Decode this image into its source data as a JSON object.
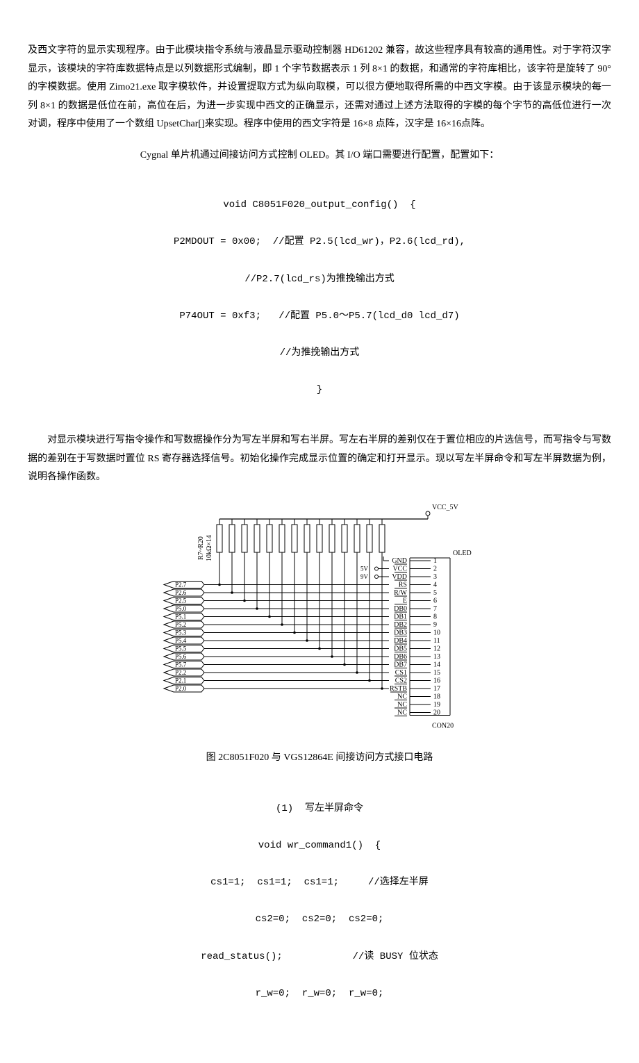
{
  "para1": "及西文字符的显示实现程序。由于此模块指令系统与液晶显示驱动控制器 HD61202 兼容，故这些程序具有较高的通用性。对于字符汉字显示，该模块的字符库数据特点是以列数据形式编制，即 1 个字节数据表示 1 列 8×1 的数据，和通常的字符库相比，该字符是旋转了 90°的字模数据。使用 Zimo21.exe 取字模软件，并设置提取方式为纵向取模，可以很方便地取得所需的中西文字模。由于该显示模块的每一列 8×1 的数据是低位在前，高位在后，为进一步实现中西文的正确显示，还需对通过上述方法取得的字模的每个字节的高低位进行一次对调，程序中使用了一个数组 UpsetChar[]来实现。程序中使用的西文字符是 16×8 点阵，汉字是 16×16点阵。",
  "para2": "Cygnal 单片机通过间接访问方式控制 OLED。其 I/O 端口需要进行配置，配置如下：",
  "code1": {
    "l1": "void C8051F020_output_config()  {",
    "l2": "P2MDOUT = 0x00;  //配置 P2.5(lcd_wr)，P2.6(lcd_rd),",
    "l3": "//P2.7(lcd_rs)为推挽输出方式",
    "l4": "P74OUT = 0xf3;   //配置 P5.0～P5.7(lcd_d0 lcd_d7)",
    "l5": "//为推挽输出方式",
    "l6": "}"
  },
  "para3": "对显示模块进行写指令操作和写数据操作分为写左半屏和写右半屏。写左右半屏的差别仅在于置位相应的片选信号，而写指令与写数据的差别在于写数据时置位 RS 寄存器选择信号。初始化操作完成显示位置的确定和打开显示。现以写左半屏命令和写左半屏数据为例，说明各操作函数。",
  "diagram": {
    "vcc_label": "VCC_5V",
    "res_label1": "R7~R20",
    "res_label2": "10kΩ×14",
    "oled_label": "OLED",
    "con_label": "CON20",
    "v5": "5V",
    "v9": "9V",
    "left_pins": [
      "P2.7",
      "P2.6",
      "P2.5",
      "P5.0",
      "P5.1",
      "P5.2",
      "P5.3",
      "P5.4",
      "P5.5",
      "P5.6",
      "P5.7",
      "P2.2",
      "P2.1",
      "P2.0"
    ],
    "right_pins": [
      "GND",
      "VCC",
      "VDD",
      "RS",
      "R/W",
      "E",
      "DB0",
      "DB1",
      "DB2",
      "DB3",
      "DB4",
      "DB5",
      "DB6",
      "DB7",
      "CS1",
      "CS2",
      "RSTB",
      "NC",
      "NC",
      "NC"
    ],
    "right_nums": [
      "1",
      "2",
      "3",
      "4",
      "5",
      "6",
      "7",
      "8",
      "9",
      "10",
      "11",
      "12",
      "13",
      "14",
      "15",
      "16",
      "17",
      "18",
      "19",
      "20"
    ]
  },
  "fig_caption": "图 2C8051F020 与 VGS12864E 间接访问方式接口电路",
  "code2": {
    "l1": "(1)  写左半屏命令",
    "l2": "void wr_command1()  {",
    "l3": "cs1=1;  cs1=1;  cs1=1;     //选择左半屏",
    "l4": "cs2=0;  cs2=0;  cs2=0;",
    "l5": "read_status();            //读 BUSY 位状态",
    "l6": "r_w=0;  r_w=0;  r_w=0;"
  }
}
